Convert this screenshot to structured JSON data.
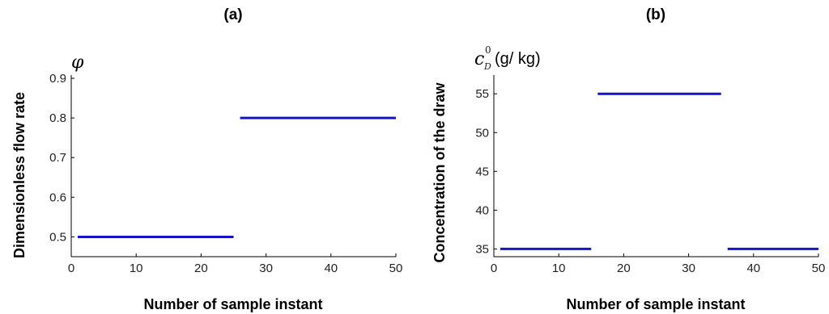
{
  "chart_data": [
    {
      "type": "line",
      "title": "(a)",
      "symbol": "φ",
      "unit": "",
      "xlabel": "Number of sample instant",
      "ylabel": "Dimensionless flow rate",
      "xlim": [
        0,
        50
      ],
      "ylim": [
        0.45,
        0.9
      ],
      "xticks": [
        0,
        10,
        20,
        30,
        40,
        50
      ],
      "yticks": [
        0.5,
        0.6,
        0.7,
        0.8,
        0.9
      ],
      "grid": false,
      "series": [
        {
          "color": "#1515c8",
          "segments": [
            {
              "x": [
                1,
                25
              ],
              "y": 0.5
            },
            {
              "x": [
                26,
                50
              ],
              "y": 0.8
            }
          ]
        }
      ]
    },
    {
      "type": "line",
      "title": "(b)",
      "symbol": "c",
      "symbol_sup": "0",
      "symbol_sub": "D",
      "unit": "(g/ kg)",
      "xlabel": "Number of sample instant",
      "ylabel": "Concentration of the draw",
      "xlim": [
        0,
        50
      ],
      "ylim": [
        34,
        57
      ],
      "xticks": [
        0,
        10,
        20,
        30,
        40,
        50
      ],
      "yticks": [
        35,
        40,
        45,
        50,
        55
      ],
      "grid": false,
      "series": [
        {
          "color": "#1515c8",
          "segments": [
            {
              "x": [
                1,
                15
              ],
              "y": 35
            },
            {
              "x": [
                16,
                35
              ],
              "y": 55
            },
            {
              "x": [
                36,
                50
              ],
              "y": 35
            }
          ]
        }
      ]
    }
  ]
}
